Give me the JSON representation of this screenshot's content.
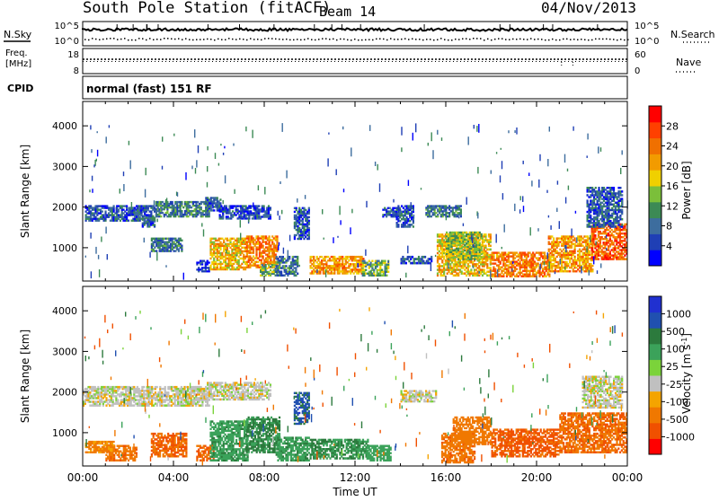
{
  "header": {
    "station": "South Pole Station (fitACF)",
    "beam": "Beam 14",
    "date": "04/Nov/2013"
  },
  "top_panel": {
    "left_label_nsky": "N.Sky",
    "left_tick_top": "10^5",
    "left_tick_bottom": "10^0",
    "right_tick_top": "10^5",
    "right_tick_bottom": "10^0",
    "right_label_nsearch": "N.Search",
    "freq_label_line1": "Freq.",
    "freq_label_line2": "[MHz]",
    "freq_tick_top": "18",
    "freq_tick_bottom": "8",
    "nave_tick_top": "60",
    "nave_tick_bottom": "0",
    "nave_label": "Nave",
    "cpid_label": "CPID",
    "cpid_value": "normal (fast) 151 RF"
  },
  "colors": {
    "power_scale": [
      "#0000ff",
      "#1f3fb5",
      "#3d6d9e",
      "#3c8a55",
      "#7bbf3a",
      "#f0d000",
      "#f29b00",
      "#f07000",
      "#ff4000",
      "#ff0000"
    ],
    "velocity_scale": [
      "#ff0000",
      "#f05000",
      "#f07800",
      "#f4a400",
      "#c0c0c0",
      "#7bd33a",
      "#3ba25a",
      "#2c7a3d",
      "#2050b0",
      "#2030d0"
    ]
  },
  "chart_data": [
    {
      "type": "heatmap",
      "title": "",
      "xlabel": "Time UT",
      "ylabel": "Slant Range [km]",
      "x_ticks": [
        "00:00",
        "04:00",
        "08:00",
        "12:00",
        "16:00",
        "20:00",
        "00:00"
      ],
      "y_ticks": [
        "1000",
        "2000",
        "3000",
        "4000"
      ],
      "xlim_hours": [
        0,
        24
      ],
      "ylim_km": [
        180,
        4600
      ],
      "colorbar_label": "Power [dB]",
      "colorbar_ticks": [
        "4",
        "8",
        "12",
        "16",
        "20",
        "24",
        "28"
      ],
      "clim": [
        0,
        30
      ],
      "regions_hour_km_db": [
        [
          0.1,
          3.2,
          1650,
          2050,
          6
        ],
        [
          3.2,
          5.6,
          1750,
          2150,
          9
        ],
        [
          2.6,
          3.2,
          1500,
          1800,
          7
        ],
        [
          2.0,
          2.6,
          1800,
          2000,
          5
        ],
        [
          5.4,
          6.1,
          1900,
          2250,
          7
        ],
        [
          6.0,
          8.3,
          1700,
          2050,
          5
        ],
        [
          5.0,
          5.6,
          400,
          700,
          4
        ],
        [
          5.6,
          7.2,
          450,
          1250,
          18
        ],
        [
          7.2,
          8.6,
          500,
          1300,
          22
        ],
        [
          7.8,
          8.6,
          300,
          600,
          12
        ],
        [
          8.5,
          9.5,
          300,
          800,
          8
        ],
        [
          9.3,
          10.0,
          1200,
          2000,
          6
        ],
        [
          10.0,
          12.4,
          350,
          800,
          20
        ],
        [
          12.3,
          13.5,
          300,
          700,
          12
        ],
        [
          13.2,
          14.0,
          1750,
          2000,
          5
        ],
        [
          13.8,
          14.6,
          1500,
          2050,
          6
        ],
        [
          15.1,
          16.7,
          1750,
          2050,
          8
        ],
        [
          14.0,
          15.4,
          600,
          800,
          6
        ],
        [
          15.6,
          18.0,
          300,
          1350,
          18
        ],
        [
          16.0,
          17.6,
          700,
          1400,
          14
        ],
        [
          18.0,
          20.6,
          280,
          900,
          22
        ],
        [
          20.5,
          22.5,
          400,
          1300,
          20
        ],
        [
          22.4,
          24.0,
          700,
          1600,
          24
        ],
        [
          22.2,
          23.8,
          1500,
          2500,
          6
        ],
        [
          3.0,
          4.4,
          900,
          1250,
          8
        ]
      ]
    },
    {
      "type": "heatmap",
      "title": "",
      "xlabel": "Time UT",
      "ylabel": "Slant Range [km]",
      "x_ticks": [
        "00:00",
        "04:00",
        "08:00",
        "12:00",
        "16:00",
        "20:00",
        "00:00"
      ],
      "y_ticks": [
        "1000",
        "2000",
        "3000",
        "4000"
      ],
      "xlim_hours": [
        0,
        24
      ],
      "ylim_km": [
        180,
        4600
      ],
      "colorbar_label": "Velocity [m s-1]",
      "colorbar_label_main": "Velocity [m s",
      "colorbar_label_exp": "-1",
      "colorbar_label_close": "]",
      "colorbar_ticks": [
        "1000",
        "500",
        "100",
        "25",
        "-25",
        "-100",
        "-500",
        "-1000"
      ],
      "clim": [
        -1000,
        1000
      ],
      "regions_hour_km_ms": [
        [
          0.0,
          5.6,
          1650,
          2150,
          0
        ],
        [
          5.4,
          8.3,
          1800,
          2250,
          0
        ],
        [
          5.0,
          5.8,
          300,
          700,
          -300
        ],
        [
          5.6,
          7.3,
          300,
          1300,
          250
        ],
        [
          7.2,
          8.7,
          500,
          1400,
          320
        ],
        [
          8.5,
          10.0,
          300,
          900,
          260
        ],
        [
          9.3,
          10.0,
          1200,
          2000,
          600
        ],
        [
          10.0,
          12.6,
          350,
          850,
          300
        ],
        [
          12.5,
          13.6,
          300,
          700,
          150
        ],
        [
          14.0,
          15.6,
          1750,
          2050,
          0
        ],
        [
          15.8,
          17.3,
          250,
          1000,
          -250
        ],
        [
          16.3,
          18.0,
          700,
          1400,
          -200
        ],
        [
          18.0,
          21.0,
          400,
          1100,
          -350
        ],
        [
          21.0,
          24.0,
          500,
          1500,
          -280
        ],
        [
          22.0,
          23.8,
          1600,
          2400,
          0
        ],
        [
          3.0,
          4.6,
          400,
          1000,
          -300
        ],
        [
          1.0,
          2.4,
          300,
          700,
          -250
        ],
        [
          0.1,
          1.4,
          500,
          800,
          -120
        ]
      ]
    }
  ]
}
